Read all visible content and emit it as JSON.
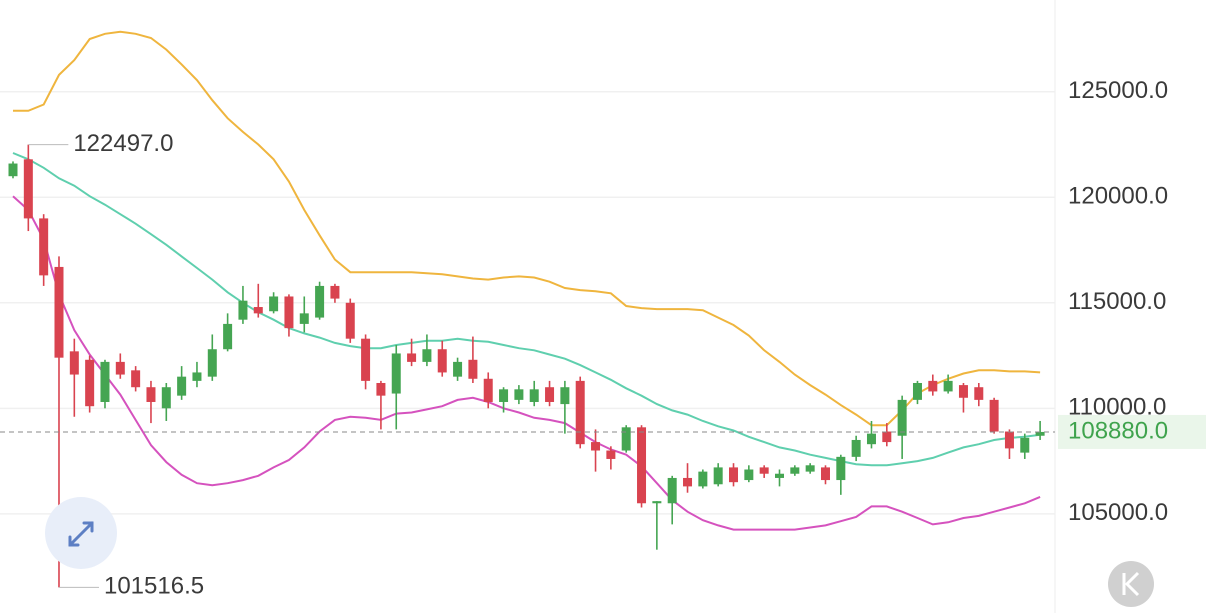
{
  "chart_data": {
    "type": "candlestick",
    "ylim": [
      100300,
      129350
    ],
    "yticks": [
      {
        "value": 105000,
        "label": "105000.0"
      },
      {
        "value": 110000,
        "label": "110000.0"
      },
      {
        "value": 115000,
        "label": "115000.0"
      },
      {
        "value": 120000,
        "label": "120000.0"
      },
      {
        "value": 125000,
        "label": "125000.0"
      }
    ],
    "grid": true,
    "up_color": "#45a552",
    "down_color": "#d9434f",
    "open": [
      121000,
      121800,
      119000,
      116700,
      112700,
      112300,
      110300,
      112200,
      111800,
      111000,
      110000,
      110600,
      111300,
      111500,
      112800,
      114200,
      114800,
      114600,
      115300,
      114000,
      114300,
      115800,
      115000,
      113300,
      111200,
      110700,
      112600,
      112200,
      112800,
      111500,
      112300,
      111400,
      110300,
      110400,
      110300,
      111000,
      110200,
      111300,
      108400,
      108000,
      108000,
      109100,
      105500,
      105500,
      106700,
      106300,
      106400,
      107200,
      106600,
      107200,
      106700,
      106900,
      107000,
      107200,
      106600,
      107700,
      108300,
      108900,
      108700,
      110400,
      111300,
      110800,
      111100,
      111000,
      110400,
      108900,
      107900,
      108700
    ],
    "high": [
      121700,
      122497,
      119200,
      117200,
      113300,
      112500,
      112300,
      112600,
      112000,
      111300,
      111200,
      112000,
      112200,
      113500,
      114500,
      115800,
      115900,
      115500,
      115400,
      115300,
      116000,
      115900,
      115200,
      113500,
      111300,
      113000,
      113300,
      113500,
      113200,
      112400,
      113400,
      111700,
      111000,
      111100,
      111300,
      111300,
      111300,
      111500,
      109000,
      108200,
      109200,
      109200,
      105600,
      106800,
      107400,
      107100,
      107400,
      107400,
      107300,
      107300,
      107100,
      107300,
      107400,
      107300,
      107800,
      108700,
      109400,
      109300,
      110600,
      111300,
      111600,
      111600,
      111200,
      111200,
      110500,
      109000,
      108800,
      109400
    ],
    "low": [
      120900,
      118400,
      115800,
      101516.5,
      109600,
      109800,
      110000,
      111400,
      110800,
      109300,
      109400,
      110400,
      111000,
      111300,
      112700,
      114000,
      114300,
      114500,
      113400,
      113600,
      114200,
      115000,
      113100,
      110900,
      109000,
      109000,
      112000,
      112000,
      111500,
      111300,
      111200,
      110000,
      109800,
      110200,
      110100,
      110100,
      108800,
      108100,
      107000,
      107100,
      107900,
      105300,
      103300,
      104500,
      106000,
      106200,
      106300,
      106300,
      106500,
      106700,
      106300,
      106800,
      106900,
      106400,
      105900,
      107500,
      108100,
      108200,
      107600,
      110200,
      110600,
      110700,
      109800,
      110100,
      108800,
      107600,
      107600,
      108500
    ],
    "close": [
      121600,
      119000,
      116300,
      112400,
      111600,
      110100,
      112200,
      111600,
      111000,
      110300,
      111000,
      111500,
      111700,
      112800,
      114000,
      115100,
      114500,
      115300,
      113800,
      114500,
      115800,
      115200,
      113300,
      111300,
      110600,
      112600,
      112200,
      112800,
      111700,
      112200,
      111400,
      110300,
      110900,
      110900,
      110900,
      110300,
      111000,
      108300,
      108000,
      107600,
      109100,
      105500,
      105600,
      106700,
      106300,
      107000,
      107200,
      106500,
      107100,
      106900,
      106900,
      107200,
      107300,
      106600,
      107700,
      108500,
      108800,
      108400,
      110400,
      111200,
      110800,
      111300,
      110500,
      110400,
      108900,
      108100,
      108600,
      108880
    ],
    "lines": [
      {
        "color": "#efb53e",
        "values": [
          124100,
          124100,
          124400,
          125800,
          126500,
          127500,
          127750,
          127850,
          127750,
          127550,
          127000,
          126300,
          125550,
          124600,
          123750,
          123100,
          122500,
          121800,
          120750,
          119400,
          118200,
          117050,
          116450,
          116450,
          116450,
          116450,
          116450,
          116400,
          116350,
          116250,
          116150,
          116100,
          116200,
          116250,
          116200,
          116000,
          115700,
          115600,
          115550,
          115450,
          114850,
          114750,
          114700,
          114700,
          114700,
          114650,
          114300,
          113950,
          113450,
          112750,
          112200,
          111600,
          111100,
          110650,
          110150,
          109700,
          109200,
          109200,
          109900,
          110700,
          111100,
          111400,
          111650,
          111800,
          111800,
          111750,
          111750,
          111700
        ]
      },
      {
        "color": "#5fcfae",
        "values": [
          122100,
          121800,
          121400,
          120900,
          120550,
          120050,
          119650,
          119200,
          118750,
          118250,
          117750,
          117200,
          116650,
          116100,
          115500,
          115000,
          114550,
          114200,
          113800,
          113550,
          113350,
          113100,
          112950,
          112850,
          112850,
          113000,
          113100,
          113200,
          113200,
          113300,
          113200,
          113150,
          113000,
          112850,
          112750,
          112550,
          112350,
          112050,
          111700,
          111350,
          110950,
          110600,
          110200,
          109900,
          109700,
          109400,
          109150,
          108950,
          108650,
          108400,
          108150,
          108000,
          107800,
          107650,
          107500,
          107350,
          107300,
          107300,
          107400,
          107500,
          107650,
          107900,
          108150,
          108300,
          108500,
          108600,
          108650,
          108750
        ]
      },
      {
        "color": "#d552be",
        "values": [
          120050,
          119400,
          118000,
          115400,
          113700,
          112550,
          111600,
          110650,
          109450,
          108250,
          107450,
          106850,
          106450,
          106350,
          106450,
          106600,
          106800,
          107200,
          107550,
          108150,
          108900,
          109450,
          109600,
          109550,
          109450,
          109750,
          109800,
          109950,
          110100,
          110400,
          110500,
          110300,
          110000,
          109800,
          109550,
          109450,
          109300,
          108850,
          108400,
          108050,
          107800,
          107250,
          106450,
          105650,
          105100,
          104700,
          104450,
          104250,
          104250,
          104250,
          104250,
          104250,
          104350,
          104450,
          104650,
          104850,
          105350,
          105350,
          105100,
          104800,
          104500,
          104600,
          104800,
          104900,
          105100,
          105300,
          105500,
          105800
        ]
      }
    ],
    "annotations": [
      {
        "value": 122497,
        "label": "122497.0",
        "at": "high"
      },
      {
        "value": 101516.5,
        "label": "101516.5",
        "at": "low"
      }
    ],
    "last": {
      "value": 108880,
      "label": "108880.0"
    }
  }
}
